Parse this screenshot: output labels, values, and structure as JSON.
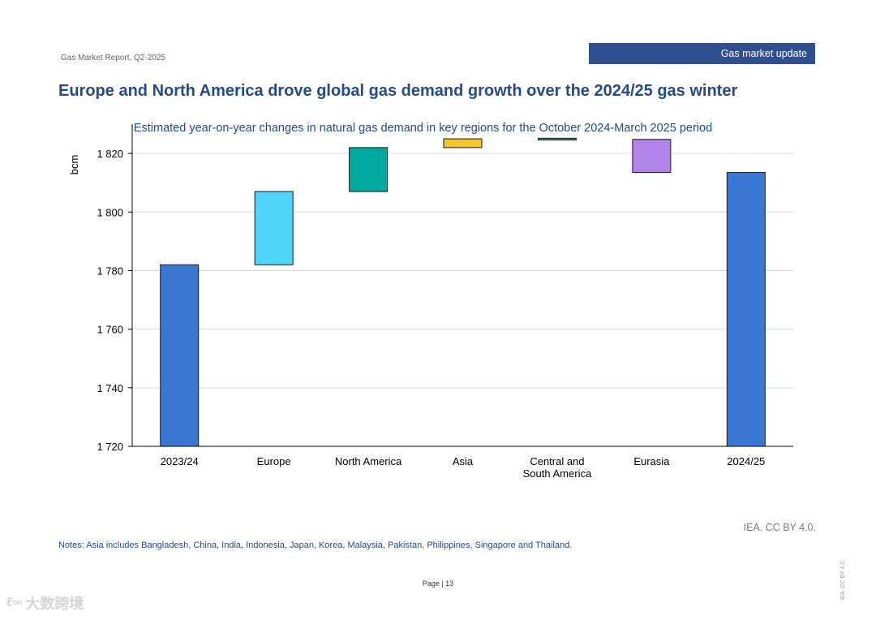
{
  "header": {
    "report_label": "Gas Market Report, Q2-2025",
    "section_badge": "Gas market update",
    "badge_color": "#2f4f8f"
  },
  "title": "Europe and North America drove global gas demand growth over the 2024/25 gas winter",
  "chart_data": {
    "type": "waterfall",
    "title": "Estimated year-on-year changes in natural gas demand in key regions for the October 2024-March 2025 period",
    "ylabel": "bcm",
    "xlabel": "",
    "ylim": [
      1720,
      1830
    ],
    "yticks": [
      1720,
      1740,
      1760,
      1780,
      1800,
      1820
    ],
    "ytick_labels": [
      "1 720",
      "1 740",
      "1 760",
      "1 780",
      "1 800",
      "1 820"
    ],
    "grid": true,
    "bars": [
      {
        "label": "2023/24",
        "start": 1720,
        "end": 1782,
        "kind": "total",
        "color": "#3b78d4"
      },
      {
        "label": "Europe",
        "start": 1782,
        "end": 1807,
        "kind": "change",
        "color": "#4fd4fb"
      },
      {
        "label": "North America",
        "start": 1807,
        "end": 1822,
        "kind": "change",
        "color": "#00a99d"
      },
      {
        "label": "Asia",
        "start": 1822,
        "end": 1825,
        "kind": "change",
        "color": "#f2c62c"
      },
      {
        "label": "Central and South America",
        "label_lines": [
          "Central and",
          "South America"
        ],
        "start": 1824.6,
        "end": 1825.2,
        "kind": "change",
        "color": "#2fa66a"
      },
      {
        "label": "Eurasia",
        "start": 1824.8,
        "end": 1813.5,
        "kind": "change",
        "color": "#b285ec"
      },
      {
        "label": "2024/25",
        "start": 1720,
        "end": 1813.5,
        "kind": "total",
        "color": "#3b78d4"
      }
    ]
  },
  "source": "IEA. CC BY 4.0.",
  "notes": "Notes: Asia includes Bangladesh, China, India, Indonesia, Japan, Korea, Malaysia, Pakistan, Philippines, Singapore and Thailand.",
  "footer": {
    "page_label": "Page | 13",
    "side_credit": "IEA. CC BY 4.0.",
    "watermark": "大数跨境",
    "watermark_logo": "ℓ∞"
  }
}
